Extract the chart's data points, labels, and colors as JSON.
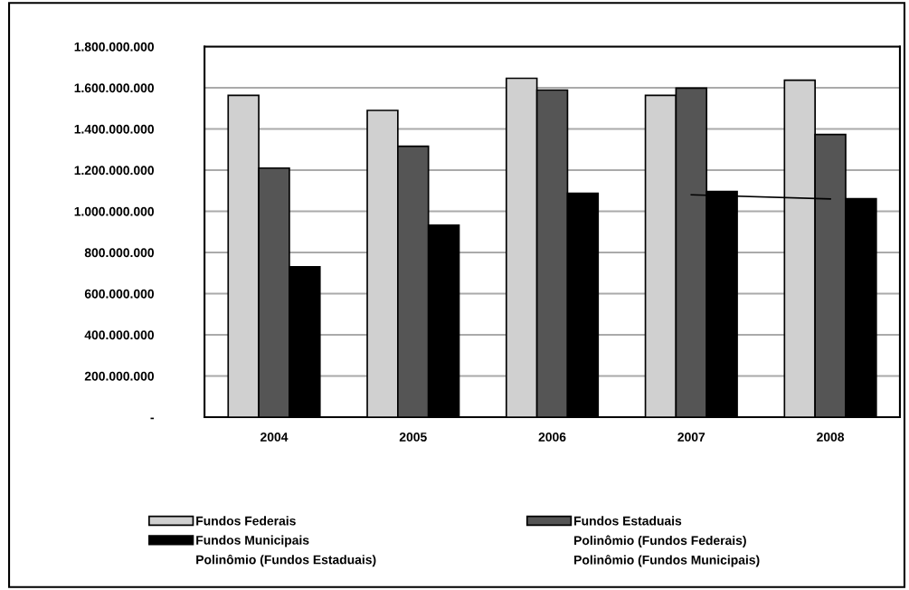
{
  "chart_data": {
    "type": "bar",
    "categories": [
      "2004",
      "2005",
      "2006",
      "2007",
      "2008"
    ],
    "series": [
      {
        "name": "Fundos Federais",
        "color": "#d0d0d0",
        "values": [
          1563000000,
          1490000000,
          1646000000,
          1563000000,
          1637000000
        ]
      },
      {
        "name": "Fundos Estaduais",
        "color": "#555555",
        "values": [
          1210000000,
          1316000000,
          1589000000,
          1598000000,
          1373000000
        ]
      },
      {
        "name": "Fundos Municipais",
        "color": "#000000",
        "values": [
          730000000,
          933000000,
          1087000000,
          1096000000,
          1061000000
        ]
      },
      {
        "type": "line",
        "color": "#000000",
        "values": [
          null,
          null,
          null,
          1080000000,
          1060000000
        ]
      }
    ],
    "annotations": [
      "Polinômio (Fundos Federais)",
      "Polinômio (Fundos Estaduais)",
      "Polinômio (Fundos Municipais)"
    ],
    "ylim": [
      0,
      1800000000
    ],
    "yticks": [
      {
        "value": 0,
        "label": "-"
      },
      {
        "value": 200000000,
        "label": "200.000.000"
      },
      {
        "value": 400000000,
        "label": "400.000.000"
      },
      {
        "value": 600000000,
        "label": "600.000.000"
      },
      {
        "value": 800000000,
        "label": "800.000.000"
      },
      {
        "value": 1000000000,
        "label": "1.000.000.000"
      },
      {
        "value": 1200000000,
        "label": "1.200.000.000"
      },
      {
        "value": 1400000000,
        "label": "1.400.000.000"
      },
      {
        "value": 1600000000,
        "label": "1.600.000.000"
      },
      {
        "value": 1800000000,
        "label": "1.800.000.000"
      }
    ],
    "grid": "y",
    "legend": "bottom"
  }
}
